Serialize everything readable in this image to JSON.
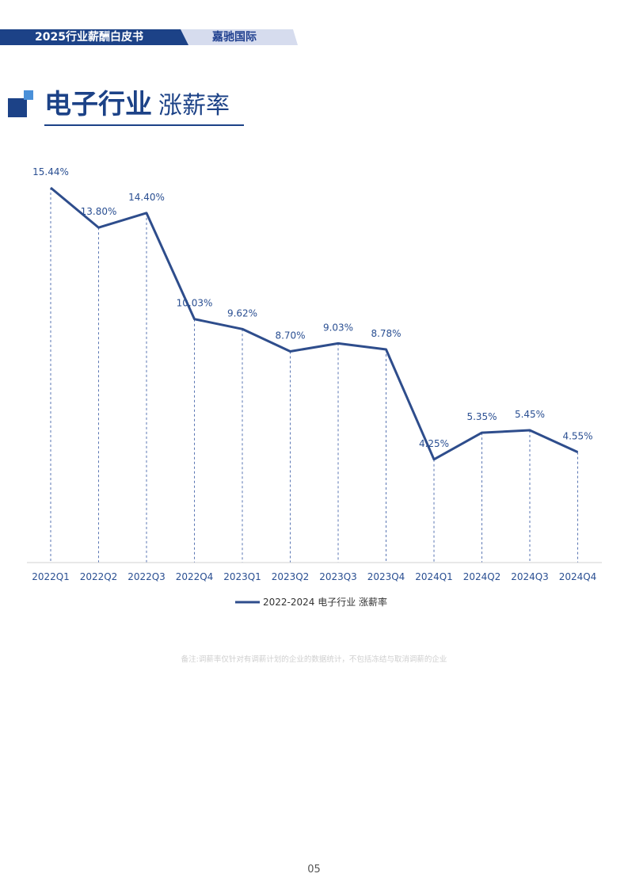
{
  "header": {
    "report_title": "2025行业薪酬白皮书",
    "brand": "嘉驰国际"
  },
  "section": {
    "title_main": "电子行业",
    "title_sub": "涨薪率"
  },
  "colors": {
    "primary": "#1c4287",
    "line": "#2e4d8c",
    "banner_light": "#d6dcee",
    "accent_light": "#4a90d9"
  },
  "chart_data": {
    "type": "line",
    "categories": [
      "2022Q1",
      "2022Q2",
      "2022Q3",
      "2022Q4",
      "2023Q1",
      "2023Q2",
      "2023Q3",
      "2023Q4",
      "2024Q1",
      "2024Q2",
      "2024Q3",
      "2024Q4"
    ],
    "series": [
      {
        "name": "2022-2024 电子行业 涨薪率",
        "values": [
          15.44,
          13.8,
          14.4,
          10.03,
          9.62,
          8.7,
          9.03,
          8.78,
          4.25,
          5.35,
          5.45,
          4.55
        ],
        "labels": [
          "15.44%",
          "13.80%",
          "14.40%",
          "10.03%",
          "9.62%",
          "8.70%",
          "9.03%",
          "8.78%",
          "4.25%",
          "5.35%",
          "5.45%",
          "4.55%"
        ]
      }
    ],
    "ylim": [
      0,
      17.3
    ],
    "grid": false,
    "drop_lines": true,
    "legend": "bottom-center"
  },
  "footnote": "备注:调薪率仅针对有调薪计划的企业的数据统计，不包括冻结与取消调薪的企业",
  "page_number": "05"
}
